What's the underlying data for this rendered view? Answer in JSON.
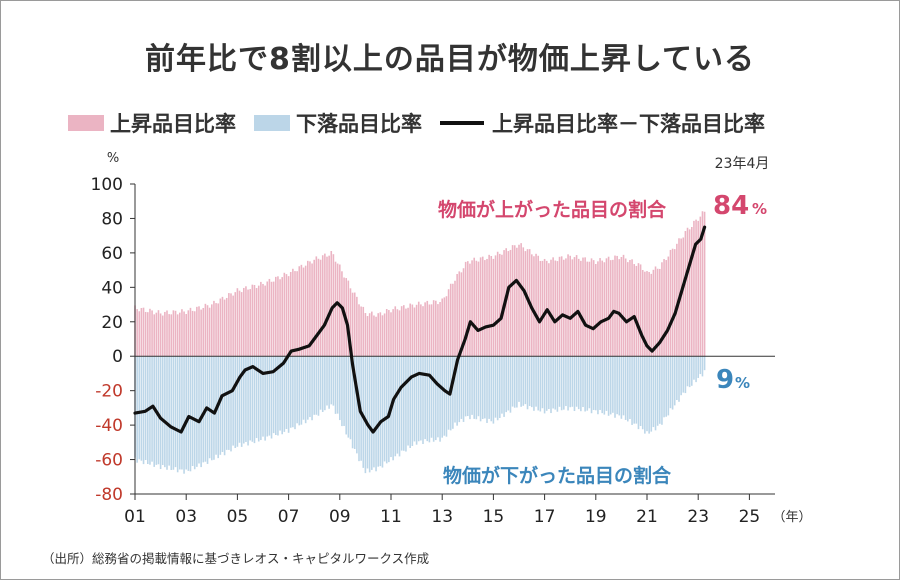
{
  "title": "前年比で8割以上の品目が物価上昇している",
  "legend": {
    "rise": "上昇品目比率",
    "fall": "下落品目比率",
    "diff": "上昇品目比率－下落品目比率"
  },
  "source": "（出所）総務省の掲載情報に基づきレオス・キャピタルワークス作成",
  "colors": {
    "rise": "#ebb4c3",
    "fall": "#bcd6e8",
    "line": "#111111",
    "rise_text": "#d4476e",
    "fall_text": "#3b86bb",
    "neg_tick": "#c0392b"
  },
  "chart_data": {
    "type": "area",
    "unit": "%",
    "xunit": "（年）",
    "latest_label": "23年4月",
    "rise_annotation": "物価が上がった品目の割合",
    "fall_annotation": "物価が下がった品目の割合",
    "rise_latest_value": "84",
    "fall_latest_value": "9",
    "percent_sign": "%",
    "xlim": [
      2001,
      2026
    ],
    "ylim": [
      -80,
      100
    ],
    "yticks": [
      "100",
      "80",
      "60",
      "40",
      "20",
      "0",
      "-20",
      "-40",
      "-60",
      "-80"
    ],
    "xticks": [
      "01",
      "03",
      "05",
      "07",
      "09",
      "11",
      "13",
      "15",
      "17",
      "19",
      "21",
      "23",
      "25"
    ],
    "rise_share": [
      [
        2001,
        28
      ],
      [
        2002,
        25
      ],
      [
        2003,
        26
      ],
      [
        2004,
        30
      ],
      [
        2005,
        38
      ],
      [
        2006,
        42
      ],
      [
        2007,
        48
      ],
      [
        2008,
        56
      ],
      [
        2008.7,
        60
      ],
      [
        2009.5,
        38
      ],
      [
        2010,
        25
      ],
      [
        2010.5,
        24
      ],
      [
        2011,
        27
      ],
      [
        2012,
        30
      ],
      [
        2013,
        32
      ],
      [
        2013.5,
        45
      ],
      [
        2014,
        55
      ],
      [
        2015,
        58
      ],
      [
        2016,
        65
      ],
      [
        2016.5,
        60
      ],
      [
        2017,
        55
      ],
      [
        2018,
        58
      ],
      [
        2019,
        55
      ],
      [
        2020,
        58
      ],
      [
        2020.8,
        52
      ],
      [
        2021,
        48
      ],
      [
        2021.5,
        52
      ],
      [
        2022,
        62
      ],
      [
        2022.5,
        72
      ],
      [
        2023.25,
        84
      ]
    ],
    "fall_share": [
      [
        2001,
        -60
      ],
      [
        2002,
        -64
      ],
      [
        2003,
        -67
      ],
      [
        2004,
        -60
      ],
      [
        2005,
        -52
      ],
      [
        2006,
        -48
      ],
      [
        2007,
        -43
      ],
      [
        2008,
        -35
      ],
      [
        2008.7,
        -28
      ],
      [
        2009.5,
        -52
      ],
      [
        2010,
        -67
      ],
      [
        2010.5,
        -65
      ],
      [
        2011,
        -60
      ],
      [
        2012,
        -50
      ],
      [
        2013,
        -48
      ],
      [
        2013.5,
        -40
      ],
      [
        2014,
        -35
      ],
      [
        2015,
        -38
      ],
      [
        2016,
        -28
      ],
      [
        2016.5,
        -30
      ],
      [
        2017,
        -32
      ],
      [
        2018,
        -30
      ],
      [
        2019,
        -32
      ],
      [
        2020,
        -35
      ],
      [
        2020.8,
        -42
      ],
      [
        2021,
        -45
      ],
      [
        2021.5,
        -40
      ],
      [
        2022,
        -30
      ],
      [
        2022.5,
        -20
      ],
      [
        2023.25,
        -9
      ]
    ],
    "diff": [
      [
        2001,
        -33
      ],
      [
        2001.4,
        -32
      ],
      [
        2001.7,
        -29
      ],
      [
        2002,
        -36
      ],
      [
        2002.4,
        -41
      ],
      [
        2002.8,
        -44
      ],
      [
        2003.1,
        -35
      ],
      [
        2003.5,
        -38
      ],
      [
        2003.8,
        -30
      ],
      [
        2004.1,
        -33
      ],
      [
        2004.4,
        -23
      ],
      [
        2004.8,
        -20
      ],
      [
        2005.1,
        -12
      ],
      [
        2005.3,
        -8
      ],
      [
        2005.6,
        -6
      ],
      [
        2006,
        -10
      ],
      [
        2006.4,
        -9
      ],
      [
        2006.8,
        -4
      ],
      [
        2007.1,
        3
      ],
      [
        2007.4,
        4
      ],
      [
        2007.8,
        6
      ],
      [
        2008,
        10
      ],
      [
        2008.4,
        18
      ],
      [
        2008.7,
        28
      ],
      [
        2008.9,
        31
      ],
      [
        2009.1,
        28
      ],
      [
        2009.3,
        18
      ],
      [
        2009.5,
        -5
      ],
      [
        2009.8,
        -32
      ],
      [
        2010.1,
        -40
      ],
      [
        2010.3,
        -44
      ],
      [
        2010.6,
        -38
      ],
      [
        2010.9,
        -35
      ],
      [
        2011.1,
        -25
      ],
      [
        2011.4,
        -18
      ],
      [
        2011.8,
        -12
      ],
      [
        2012.1,
        -10
      ],
      [
        2012.5,
        -11
      ],
      [
        2012.8,
        -16
      ],
      [
        2013.1,
        -20
      ],
      [
        2013.3,
        -22
      ],
      [
        2013.6,
        -2
      ],
      [
        2013.9,
        10
      ],
      [
        2014.1,
        20
      ],
      [
        2014.4,
        15
      ],
      [
        2014.7,
        17
      ],
      [
        2015,
        18
      ],
      [
        2015.3,
        22
      ],
      [
        2015.6,
        40
      ],
      [
        2015.9,
        44
      ],
      [
        2016.2,
        38
      ],
      [
        2016.5,
        28
      ],
      [
        2016.8,
        20
      ],
      [
        2017.1,
        27
      ],
      [
        2017.4,
        20
      ],
      [
        2017.7,
        24
      ],
      [
        2018,
        22
      ],
      [
        2018.3,
        26
      ],
      [
        2018.6,
        18
      ],
      [
        2018.9,
        16
      ],
      [
        2019.2,
        20
      ],
      [
        2019.5,
        22
      ],
      [
        2019.7,
        26
      ],
      [
        2019.9,
        25
      ],
      [
        2020.2,
        20
      ],
      [
        2020.5,
        23
      ],
      [
        2020.8,
        12
      ],
      [
        2021,
        6
      ],
      [
        2021.2,
        3
      ],
      [
        2021.5,
        8
      ],
      [
        2021.8,
        15
      ],
      [
        2022.1,
        25
      ],
      [
        2022.4,
        40
      ],
      [
        2022.7,
        55
      ],
      [
        2022.9,
        65
      ],
      [
        2023.1,
        68
      ],
      [
        2023.25,
        75
      ]
    ]
  }
}
